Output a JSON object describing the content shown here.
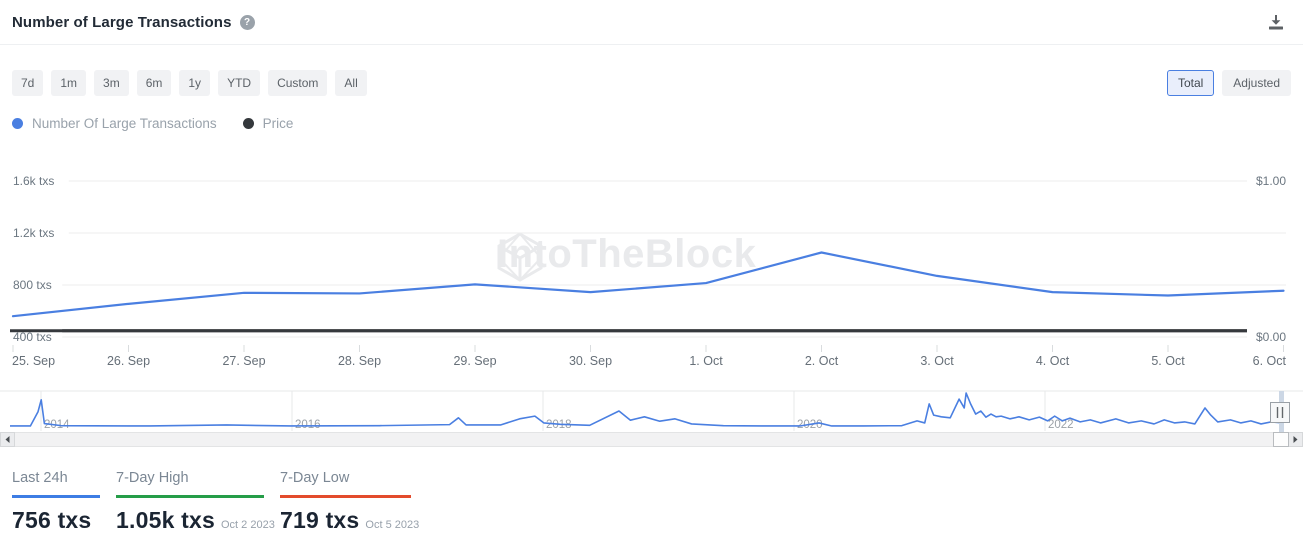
{
  "header": {
    "title": "Number of Large Transactions",
    "help_icon": "question-circle",
    "download_icon": "download"
  },
  "toolbar": {
    "ranges": [
      "7d",
      "1m",
      "3m",
      "6m",
      "1y",
      "YTD",
      "Custom",
      "All"
    ],
    "modes": [
      {
        "label": "Total",
        "selected": true
      },
      {
        "label": "Adjusted",
        "selected": false
      }
    ]
  },
  "legend": [
    {
      "label": "Number Of Large Transactions",
      "color": "#4a7fe1"
    },
    {
      "label": "Price",
      "color": "#34383c"
    }
  ],
  "watermark": {
    "text": "IntoTheBlock"
  },
  "chart_data": {
    "type": "line",
    "title": "Number of Large Transactions",
    "categories": [
      "25. Sep",
      "26. Sep",
      "27. Sep",
      "28. Sep",
      "29. Sep",
      "30. Sep",
      "1. Oct",
      "2. Oct",
      "3. Oct",
      "4. Oct",
      "5. Oct",
      "6. Oct"
    ],
    "series": [
      {
        "name": "Number Of Large Transactions",
        "unit": "txs",
        "color": "#4a7fe1",
        "values": [
          560,
          655,
          740,
          735,
          805,
          745,
          815,
          1050,
          870,
          745,
          719,
          756
        ]
      },
      {
        "name": "Price",
        "unit": "USD",
        "color": "#36393d",
        "values": [
          0.04,
          0.04,
          0.04,
          0.04,
          0.04,
          0.04,
          0.04,
          0.04,
          0.04,
          0.04,
          0.04,
          0.04
        ]
      }
    ],
    "y_axis_left": {
      "tick_labels": [
        "1.6k txs",
        "1.2k txs",
        "800 txs",
        "400 txs"
      ],
      "tick_values": [
        1600,
        1200,
        800,
        400
      ],
      "unit": "txs"
    },
    "y_axis_right": {
      "tick_labels": [
        "$1.00",
        "$0.00"
      ],
      "tick_values": [
        1,
        0
      ],
      "unit": "USD"
    },
    "grid": true,
    "legend_position": "top-left"
  },
  "navigator": {
    "type": "area-sparkline",
    "color": "#4a7fe1",
    "year_labels": [
      "2014",
      "2016",
      "2018",
      "2020",
      "2022"
    ],
    "points": [
      [
        0.0,
        0.03
      ],
      [
        0.016,
        0.03
      ],
      [
        0.022,
        0.45
      ],
      [
        0.0245,
        0.8
      ],
      [
        0.027,
        0.1
      ],
      [
        0.04,
        0.04
      ],
      [
        0.11,
        0.03
      ],
      [
        0.17,
        0.06
      ],
      [
        0.22,
        0.03
      ],
      [
        0.29,
        0.04
      ],
      [
        0.345,
        0.07
      ],
      [
        0.352,
        0.27
      ],
      [
        0.358,
        0.06
      ],
      [
        0.385,
        0.06
      ],
      [
        0.4,
        0.24
      ],
      [
        0.412,
        0.32
      ],
      [
        0.419,
        0.12
      ],
      [
        0.432,
        0.08
      ],
      [
        0.455,
        0.05
      ],
      [
        0.478,
        0.47
      ],
      [
        0.487,
        0.2
      ],
      [
        0.498,
        0.3
      ],
      [
        0.51,
        0.17
      ],
      [
        0.522,
        0.24
      ],
      [
        0.535,
        0.09
      ],
      [
        0.56,
        0.04
      ],
      [
        0.59,
        0.03
      ],
      [
        0.62,
        0.03
      ],
      [
        0.635,
        0.12
      ],
      [
        0.645,
        0.03
      ],
      [
        0.67,
        0.03
      ],
      [
        0.7,
        0.04
      ],
      [
        0.712,
        0.18
      ],
      [
        0.718,
        0.12
      ],
      [
        0.7215,
        0.68
      ],
      [
        0.725,
        0.35
      ],
      [
        0.731,
        0.3
      ],
      [
        0.738,
        0.27
      ],
      [
        0.745,
        0.82
      ],
      [
        0.749,
        0.56
      ],
      [
        0.7505,
        1.0
      ],
      [
        0.754,
        0.68
      ],
      [
        0.758,
        0.38
      ],
      [
        0.762,
        0.47
      ],
      [
        0.766,
        0.29
      ],
      [
        0.77,
        0.38
      ],
      [
        0.774,
        0.3
      ],
      [
        0.778,
        0.32
      ],
      [
        0.785,
        0.24
      ],
      [
        0.792,
        0.3
      ],
      [
        0.8,
        0.21
      ],
      [
        0.808,
        0.29
      ],
      [
        0.8145,
        0.18
      ],
      [
        0.82,
        0.32
      ],
      [
        0.826,
        0.18
      ],
      [
        0.832,
        0.26
      ],
      [
        0.84,
        0.15
      ],
      [
        0.848,
        0.21
      ],
      [
        0.856,
        0.12
      ],
      [
        0.868,
        0.24
      ],
      [
        0.878,
        0.12
      ],
      [
        0.888,
        0.18
      ],
      [
        0.898,
        0.09
      ],
      [
        0.906,
        0.21
      ],
      [
        0.914,
        0.12
      ],
      [
        0.922,
        0.15
      ],
      [
        0.93,
        0.09
      ],
      [
        0.938,
        0.56
      ],
      [
        0.9425,
        0.35
      ],
      [
        0.948,
        0.15
      ],
      [
        0.958,
        0.21
      ],
      [
        0.966,
        0.12
      ],
      [
        0.974,
        0.18
      ],
      [
        0.982,
        0.09
      ],
      [
        0.99,
        0.15
      ],
      [
        1.0,
        0.12
      ]
    ]
  },
  "stats": [
    {
      "label": "Last 24h",
      "value": "756 txs",
      "date": "",
      "accent": "#3d7de4"
    },
    {
      "label": "7-Day High",
      "value": "1.05k txs",
      "date": "Oct 2 2023",
      "accent": "#259d48"
    },
    {
      "label": "7-Day Low",
      "value": "719 txs",
      "date": "Oct 5 2023",
      "accent": "#e34b2c"
    }
  ]
}
